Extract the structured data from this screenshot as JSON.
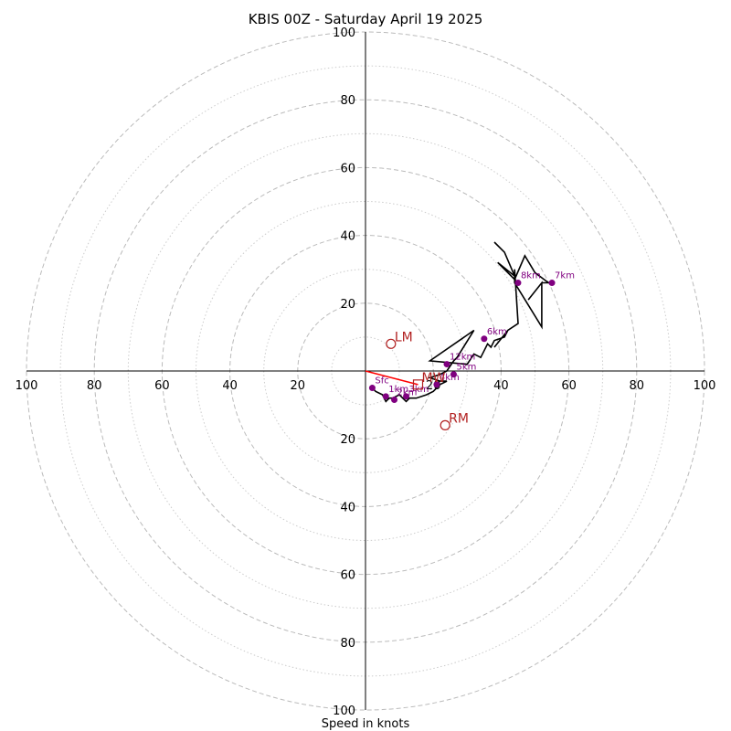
{
  "chart_data": {
    "type": "scatter",
    "title": "KBIS 00Z - Saturday April 19 2025",
    "xlabel": "Speed in knots",
    "xlim": [
      -100,
      100
    ],
    "ylim": [
      -100,
      100
    ],
    "axis_ticks": [
      "100",
      "80",
      "60",
      "40",
      "20",
      "20",
      "40",
      "60",
      "80",
      "100"
    ],
    "rings_dashed": [
      20,
      40,
      60,
      80,
      100
    ],
    "rings_dotted": [
      10,
      30,
      50,
      70,
      90
    ],
    "colors": {
      "hodograph": "#000000",
      "height_markers": "#800080",
      "storm_motion": "#b22222",
      "shear_vector": "#ff0000",
      "rings": "#bbbbbb"
    },
    "hodograph": {
      "u": [
        2,
        3,
        5,
        6,
        7,
        8,
        10,
        12,
        13,
        15,
        18,
        20,
        22,
        24,
        22,
        19,
        22,
        24,
        26,
        27,
        32,
        19,
        30,
        32,
        34,
        35,
        36,
        37,
        38,
        41,
        42,
        38,
        42,
        45,
        44,
        44,
        52,
        52,
        48,
        52,
        55,
        54,
        50,
        47,
        44,
        39,
        44,
        41,
        38
      ],
      "v": [
        -5,
        -6,
        -7,
        -9,
        -8,
        -8,
        -7,
        -9,
        -8,
        -8,
        -7,
        -6,
        -4,
        -3,
        -3,
        -2,
        -1,
        0,
        3,
        4,
        12,
        3,
        2,
        5,
        4,
        6,
        8,
        7,
        9,
        10,
        12,
        7,
        12,
        14,
        30,
        26,
        13,
        26,
        21,
        26,
        26,
        26,
        29,
        34,
        27,
        32,
        28,
        35,
        38
      ]
    },
    "height_markers": [
      {
        "label": "Sfc",
        "u": 2,
        "v": -5
      },
      {
        "label": "1km",
        "u": 6,
        "v": -7.5
      },
      {
        "label": "2km",
        "u": 8.5,
        "v": -8.5
      },
      {
        "label": "3km",
        "u": 12,
        "v": -7.5
      },
      {
        "label": "4km",
        "u": 21,
        "v": -4
      },
      {
        "label": "5km",
        "u": 26,
        "v": -1
      },
      {
        "label": "6km",
        "u": 35,
        "v": 9.5
      },
      {
        "label": "7km",
        "u": 55,
        "v": 26
      },
      {
        "label": "8km",
        "u": 45,
        "v": 26
      },
      {
        "label": "12km",
        "u": 24,
        "v": 2
      }
    ],
    "storm_motion": [
      {
        "label": "LM",
        "u": 7.5,
        "v": 8
      },
      {
        "label": "RM",
        "u": 23.5,
        "v": -16
      },
      {
        "label": "MW",
        "u": 15.5,
        "v": -4
      }
    ],
    "shear_vector": {
      "u0": 0,
      "v0": 0,
      "u1": 15.5,
      "v1": -4
    }
  }
}
